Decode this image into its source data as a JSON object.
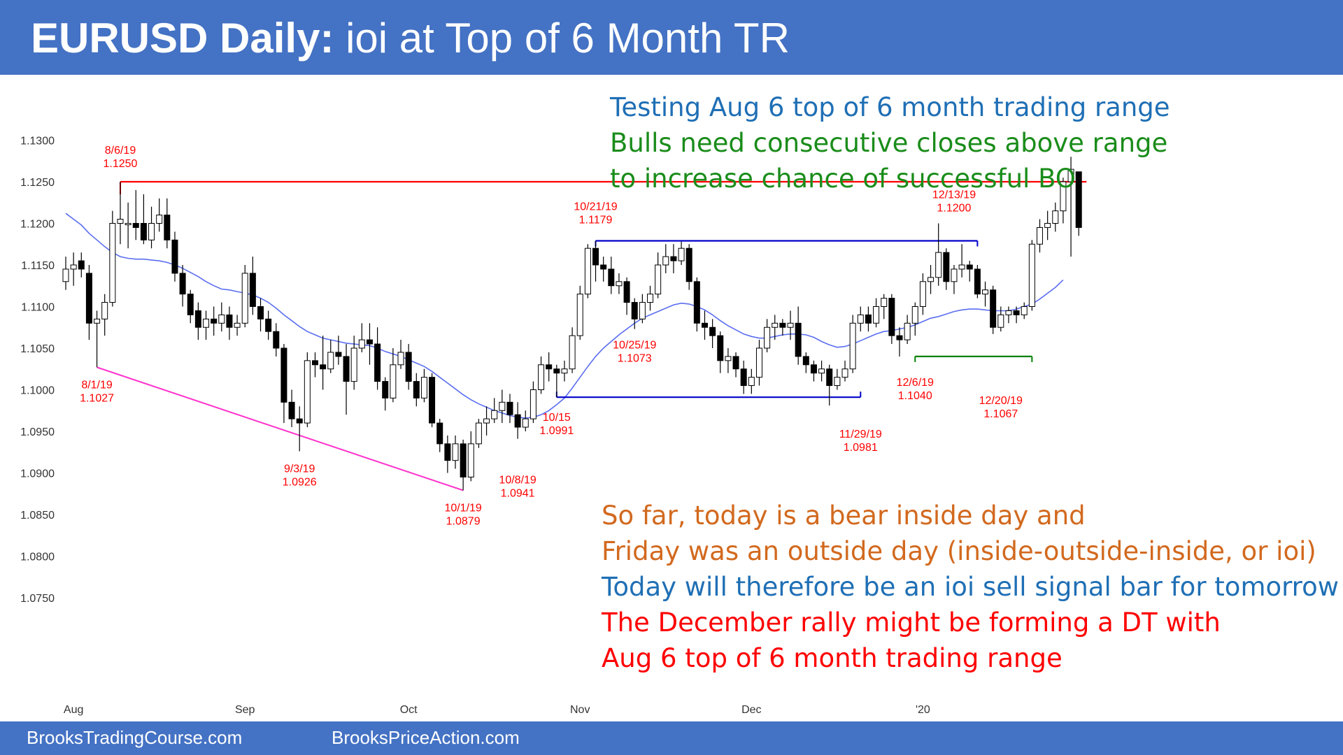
{
  "header": {
    "title_bold": "EURUSD Daily:",
    "title_rest": "ioi at Top of 6 Month TR"
  },
  "footer": {
    "left": "BrooksTradingCourse.com",
    "right": "BrooksPriceAction.com"
  },
  "colors": {
    "banner": "#4472c4",
    "resistance_line": "#ff0000",
    "range_lines": "#0000cc",
    "support_line": "#008000",
    "wedge_line": "#ff33cc",
    "moving_average": "#5b6ef0",
    "label_red": "#ff0000",
    "note_blue": "#1f6fb5",
    "note_green": "#1a8c1a",
    "note_orange": "#d2691e"
  },
  "notes": [
    {
      "text": "Testing Aug 6 top of 6 month trading range",
      "color": "#1f6fb5"
    },
    {
      "text": "Bulls need consecutive closes above range",
      "color": "#1a8c1a"
    },
    {
      "text": "to increase chance of successful BO",
      "color": "#1a8c1a"
    },
    {
      "text": "So far, today is a bear inside day and",
      "color": "#d2691e"
    },
    {
      "text": "Friday was an outside day (inside-outside-inside, or ioi)",
      "color": "#d2691e"
    },
    {
      "text": "Today will therefore be an ioi sell signal bar for tomorrow",
      "color": "#1f6fb5"
    },
    {
      "text": "The December rally might be forming a  DT with",
      "color": "#ff0000"
    },
    {
      "text": "Aug 6 top of 6 month trading range",
      "color": "#ff0000"
    }
  ],
  "chart_data": {
    "type": "candlestick",
    "title": "",
    "y_ticks": [
      "1.1300",
      "1.1250",
      "1.1200",
      "1.1150",
      "1.1100",
      "1.1050",
      "1.1000",
      "1.0950",
      "1.0900",
      "1.0850",
      "1.0800",
      "1.0750"
    ],
    "ylim": [
      1.072,
      1.131
    ],
    "x_ticks": [
      "Aug",
      "Sep",
      "Oct",
      "Nov",
      "Dec",
      "'20"
    ],
    "grid": false,
    "legend": "none",
    "candles": [
      [
        1.113,
        1.1145,
        1.112,
        1.116
      ],
      [
        1.1145,
        1.115,
        1.1125,
        1.1165
      ],
      [
        1.1155,
        1.1145,
        1.1135,
        1.1165
      ],
      [
        1.114,
        1.108,
        1.106,
        1.115
      ],
      [
        1.108,
        1.1085,
        1.1027,
        1.1095
      ],
      [
        1.1085,
        1.1105,
        1.1065,
        1.1115
      ],
      [
        1.1105,
        1.12,
        1.11,
        1.1215
      ],
      [
        1.12,
        1.1205,
        1.1175,
        1.125
      ],
      [
        1.12,
        1.12,
        1.117,
        1.1225
      ],
      [
        1.12,
        1.1195,
        1.118,
        1.124
      ],
      [
        1.12,
        1.118,
        1.1175,
        1.1235
      ],
      [
        1.118,
        1.12,
        1.117,
        1.122
      ],
      [
        1.12,
        1.121,
        1.119,
        1.123
      ],
      [
        1.121,
        1.118,
        1.117,
        1.123
      ],
      [
        1.118,
        1.114,
        1.113,
        1.119
      ],
      [
        1.114,
        1.1115,
        1.11,
        1.115
      ],
      [
        1.1115,
        1.109,
        1.108,
        1.112
      ],
      [
        1.1095,
        1.1075,
        1.106,
        1.1105
      ],
      [
        1.1075,
        1.1085,
        1.106,
        1.1095
      ],
      [
        1.1085,
        1.108,
        1.1065,
        1.11
      ],
      [
        1.108,
        1.109,
        1.107,
        1.1105
      ],
      [
        1.109,
        1.1075,
        1.106,
        1.11
      ],
      [
        1.1075,
        1.108,
        1.1065,
        1.109
      ],
      [
        1.108,
        1.114,
        1.1075,
        1.115
      ],
      [
        1.114,
        1.11,
        1.109,
        1.116
      ],
      [
        1.11,
        1.1085,
        1.107,
        1.111
      ],
      [
        1.1085,
        1.107,
        1.106,
        1.1095
      ],
      [
        1.107,
        1.105,
        1.104,
        1.108
      ],
      [
        1.105,
        1.0985,
        1.096,
        1.1055
      ],
      [
        1.0985,
        1.0965,
        1.0955,
        1.1
      ],
      [
        1.0965,
        1.096,
        1.0926,
        1.098
      ],
      [
        1.096,
        1.1035,
        1.0955,
        1.1045
      ],
      [
        1.1035,
        1.103,
        1.1015,
        1.1045
      ],
      [
        1.103,
        1.1025,
        1.1,
        1.1065
      ],
      [
        1.1025,
        1.1045,
        1.102,
        1.106
      ],
      [
        1.1045,
        1.104,
        1.103,
        1.1065
      ],
      [
        1.104,
        1.101,
        1.097,
        1.1055
      ],
      [
        1.101,
        1.105,
        1.1,
        1.1065
      ],
      [
        1.105,
        1.106,
        1.1045,
        1.108
      ],
      [
        1.106,
        1.1055,
        1.103,
        1.108
      ],
      [
        1.1055,
        1.101,
        1.1,
        1.1075
      ],
      [
        1.101,
        1.099,
        1.0975,
        1.1015
      ],
      [
        1.099,
        1.103,
        1.0985,
        1.105
      ],
      [
        1.103,
        1.1045,
        1.1025,
        1.106
      ],
      [
        1.1045,
        1.101,
        1.1,
        1.1055
      ],
      [
        1.101,
        1.099,
        1.098,
        1.102
      ],
      [
        1.099,
        1.1015,
        1.0985,
        1.1025
      ],
      [
        1.1015,
        1.096,
        1.0955,
        1.102
      ],
      [
        1.096,
        1.0935,
        1.0925,
        1.0965
      ],
      [
        1.0935,
        1.0915,
        1.09,
        1.0945
      ],
      [
        1.0915,
        1.0935,
        1.0905,
        1.0945
      ],
      [
        1.0935,
        1.0895,
        1.0879,
        1.094
      ],
      [
        1.0895,
        1.0935,
        1.089,
        1.095
      ],
      [
        1.0935,
        1.096,
        1.093,
        1.0965
      ],
      [
        1.096,
        1.0965,
        1.0945,
        1.098
      ],
      [
        1.0965,
        1.0975,
        1.096,
        1.099
      ],
      [
        1.0975,
        1.0985,
        1.096,
        1.1
      ],
      [
        1.0985,
        1.097,
        1.096,
        1.0995
      ],
      [
        1.097,
        1.0955,
        1.0941,
        1.0985
      ],
      [
        1.0955,
        1.0965,
        1.095,
        1.0975
      ],
      [
        1.0965,
        1.1,
        1.096,
        1.101
      ],
      [
        1.1,
        1.103,
        1.0995,
        1.104
      ],
      [
        1.103,
        1.1025,
        1.101,
        1.1045
      ],
      [
        1.1025,
        1.102,
        1.0991,
        1.103
      ],
      [
        1.102,
        1.1025,
        1.101,
        1.1035
      ],
      [
        1.1025,
        1.1065,
        1.102,
        1.1075
      ],
      [
        1.1065,
        1.1115,
        1.106,
        1.1125
      ],
      [
        1.1115,
        1.117,
        1.111,
        1.1175
      ],
      [
        1.117,
        1.115,
        1.113,
        1.1179
      ],
      [
        1.115,
        1.1145,
        1.113,
        1.116
      ],
      [
        1.1145,
        1.1125,
        1.1115,
        1.116
      ],
      [
        1.1125,
        1.113,
        1.1115,
        1.114
      ],
      [
        1.113,
        1.1105,
        1.109,
        1.1135
      ],
      [
        1.1105,
        1.1085,
        1.1073,
        1.111
      ],
      [
        1.1085,
        1.1105,
        1.108,
        1.1115
      ],
      [
        1.1105,
        1.1115,
        1.1095,
        1.1125
      ],
      [
        1.1115,
        1.115,
        1.111,
        1.1165
      ],
      [
        1.115,
        1.116,
        1.114,
        1.1175
      ],
      [
        1.116,
        1.1155,
        1.114,
        1.1175
      ],
      [
        1.1155,
        1.117,
        1.115,
        1.1178
      ],
      [
        1.117,
        1.113,
        1.112,
        1.1175
      ],
      [
        1.113,
        1.108,
        1.107,
        1.1135
      ],
      [
        1.108,
        1.1075,
        1.106,
        1.1095
      ],
      [
        1.1075,
        1.1065,
        1.105,
        1.1085
      ],
      [
        1.1065,
        1.1035,
        1.102,
        1.107
      ],
      [
        1.1035,
        1.104,
        1.102,
        1.105
      ],
      [
        1.104,
        1.1025,
        1.1015,
        1.1045
      ],
      [
        1.1025,
        1.1005,
        1.0995,
        1.1035
      ],
      [
        1.1005,
        1.1015,
        1.0995,
        1.1025
      ],
      [
        1.1015,
        1.105,
        1.1005,
        1.106
      ],
      [
        1.105,
        1.1075,
        1.1045,
        1.1085
      ],
      [
        1.1075,
        1.108,
        1.106,
        1.109
      ],
      [
        1.108,
        1.1075,
        1.1065,
        1.1085
      ],
      [
        1.1075,
        1.108,
        1.106,
        1.1095
      ],
      [
        1.108,
        1.104,
        1.103,
        1.11
      ],
      [
        1.104,
        1.103,
        1.102,
        1.1045
      ],
      [
        1.103,
        1.102,
        1.101,
        1.1035
      ],
      [
        1.102,
        1.1025,
        1.101,
        1.1035
      ],
      [
        1.1025,
        1.1005,
        1.0981,
        1.103
      ],
      [
        1.1005,
        1.1015,
        1.1,
        1.1025
      ],
      [
        1.1015,
        1.1025,
        1.101,
        1.1035
      ],
      [
        1.1025,
        1.108,
        1.102,
        1.109
      ],
      [
        1.108,
        1.109,
        1.107,
        1.11
      ],
      [
        1.109,
        1.108,
        1.107,
        1.11
      ],
      [
        1.108,
        1.11,
        1.1075,
        1.111
      ],
      [
        1.11,
        1.111,
        1.1085,
        1.1115
      ],
      [
        1.111,
        1.1065,
        1.1055,
        1.1115
      ],
      [
        1.1065,
        1.106,
        1.104,
        1.1075
      ],
      [
        1.106,
        1.108,
        1.1055,
        1.109
      ],
      [
        1.108,
        1.11,
        1.1065,
        1.1105
      ],
      [
        1.11,
        1.113,
        1.109,
        1.114
      ],
      [
        1.113,
        1.1135,
        1.1115,
        1.115
      ],
      [
        1.1135,
        1.1165,
        1.1125,
        1.12
      ],
      [
        1.1165,
        1.113,
        1.112,
        1.117
      ],
      [
        1.113,
        1.1145,
        1.1115,
        1.115
      ],
      [
        1.1145,
        1.115,
        1.1135,
        1.1175
      ],
      [
        1.115,
        1.1145,
        1.113,
        1.1155
      ],
      [
        1.1145,
        1.1115,
        1.111,
        1.115
      ],
      [
        1.1115,
        1.112,
        1.11,
        1.113
      ],
      [
        1.112,
        1.1075,
        1.1067,
        1.1125
      ],
      [
        1.1075,
        1.109,
        1.107,
        1.11
      ],
      [
        1.109,
        1.1095,
        1.108,
        1.11
      ],
      [
        1.1095,
        1.109,
        1.108,
        1.11
      ],
      [
        1.109,
        1.11,
        1.1085,
        1.1105
      ],
      [
        1.11,
        1.1175,
        1.1095,
        1.118
      ],
      [
        1.1175,
        1.1195,
        1.1165,
        1.1205
      ],
      [
        1.1195,
        1.12,
        1.118,
        1.1215
      ],
      [
        1.12,
        1.1215,
        1.119,
        1.1225
      ],
      [
        1.1215,
        1.125,
        1.12,
        1.1255
      ],
      [
        1.125,
        1.1265,
        1.116,
        1.128
      ],
      [
        1.1262,
        1.1195,
        1.1185,
        1.1262
      ]
    ],
    "moving_average": [
      1.1212,
      1.1205,
      1.1198,
      1.1188,
      1.118,
      1.1172,
      1.1165,
      1.116,
      1.1158,
      1.1157,
      1.1157,
      1.1156,
      1.1155,
      1.1153,
      1.115,
      1.1146,
      1.1141,
      1.1136,
      1.113,
      1.1125,
      1.1121,
      1.112,
      1.1118,
      1.1116,
      1.1114,
      1.111,
      1.1105,
      1.1098,
      1.109,
      1.1083,
      1.1076,
      1.107,
      1.1066,
      1.1062,
      1.106,
      1.1058,
      1.1056,
      1.1055,
      1.1054,
      1.1053,
      1.105,
      1.1046,
      1.1043,
      1.104,
      1.1036,
      1.1032,
      1.1028,
      1.1022,
      1.1015,
      1.1008,
      1.1001,
      1.0994,
      1.0988,
      1.0983,
      1.0979,
      1.0975,
      1.0972,
      1.0969,
      1.0967,
      1.0966,
      1.0967,
      1.097,
      1.0975,
      1.0982,
      1.099,
      1.1002,
      1.1015,
      1.1028,
      1.104,
      1.105,
      1.1058,
      1.1066,
      1.1073,
      1.108,
      1.1086,
      1.109,
      1.1094,
      1.1098,
      1.1102,
      1.1104,
      1.1103,
      1.11,
      1.1096,
      1.109,
      1.1083,
      1.1077,
      1.1072,
      1.1067,
      1.1064,
      1.1062,
      1.1062,
      1.1064,
      1.1066,
      1.1067,
      1.1067,
      1.1066,
      1.1063,
      1.1058,
      1.1054,
      1.1051,
      1.1052,
      1.1055,
      1.1059,
      1.1063,
      1.1067,
      1.107,
      1.1071,
      1.1073,
      1.1075,
      1.1078,
      1.1082,
      1.1086,
      1.1088,
      1.1091,
      1.1094,
      1.1096,
      1.1097,
      1.1097,
      1.1096,
      1.1095,
      1.1095,
      1.1095,
      1.1097,
      1.11,
      1.1103,
      1.1109,
      1.1116,
      1.1123,
      1.1132
    ],
    "horizontal_lines": [
      {
        "y": 1.125,
        "x_start_bar": 7,
        "x_end_bar": 131,
        "color": "#ff0000"
      },
      {
        "y": 1.1179,
        "x_start_bar": 68,
        "x_end_bar": 117,
        "color": "#0000cc"
      },
      {
        "y": 1.0991,
        "x_start_bar": 63,
        "x_end_bar": 102,
        "color": "#0000cc"
      },
      {
        "y": 1.104,
        "x_start_bar": 109,
        "x_end_bar": 124,
        "color": "#008000"
      }
    ],
    "trend_lines": [
      {
        "from_bar": 4,
        "from_y": 1.1027,
        "to_bar": 51,
        "to_y": 1.0879,
        "color": "#ff33cc"
      }
    ],
    "annotations": [
      {
        "date": "8/6/19",
        "price": "1.1250",
        "bar": 7,
        "anchor_y": 1.125
      },
      {
        "date": "8/1/19",
        "price": "1.1027",
        "bar": 4,
        "anchor_y": 1.1027
      },
      {
        "date": "9/3/19",
        "price": "1.0926",
        "bar": 30,
        "anchor_y": 1.0926
      },
      {
        "date": "10/1/19",
        "price": "1.0879",
        "bar": 51,
        "anchor_y": 1.0879
      },
      {
        "date": "10/8/19",
        "price": "1.0941",
        "bar": 58,
        "anchor_y": 1.0941
      },
      {
        "date": "10/15",
        "price": "1.0991",
        "bar": 63,
        "anchor_y": 1.0991
      },
      {
        "date": "10/21/19",
        "price": "1.1179",
        "bar": 68,
        "anchor_y": 1.1179
      },
      {
        "date": "10/25/19",
        "price": "1.1073",
        "bar": 73,
        "anchor_y": 1.1073
      },
      {
        "date": "11/29/19",
        "price": "1.0981",
        "bar": 102,
        "anchor_y": 1.0981
      },
      {
        "date": "12/6/19",
        "price": "1.1040",
        "bar": 109,
        "anchor_y": 1.104
      },
      {
        "date": "12/13/19",
        "price": "1.1200",
        "bar": 114,
        "anchor_y": 1.12
      },
      {
        "date": "12/20/19",
        "price": "1.1067",
        "bar": 120,
        "anchor_y": 1.1067
      }
    ]
  }
}
